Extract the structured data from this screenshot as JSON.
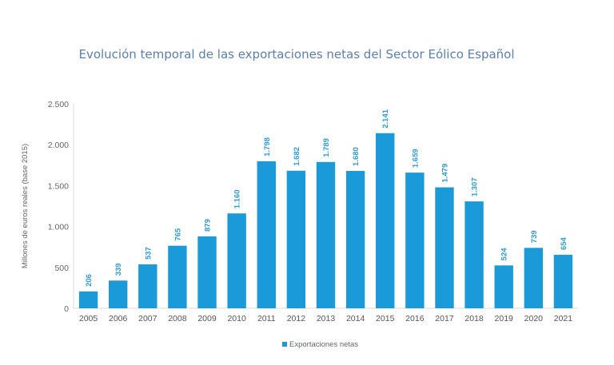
{
  "chart_data": {
    "type": "bar",
    "title": "Evolución temporal de las exportaciones netas del Sector Eólico Español",
    "xlabel": "",
    "ylabel": "Millones de euros reales (base 2015)",
    "ylim": [
      0,
      2500
    ],
    "yticks": [
      0,
      500,
      1000,
      1500,
      2000,
      2500
    ],
    "ytick_labels": [
      "0",
      "500",
      "1.000",
      "1.500",
      "2.000",
      "2.500"
    ],
    "grid": false,
    "legend_position": "bottom",
    "categories": [
      "2005",
      "2006",
      "2007",
      "2008",
      "2009",
      "2010",
      "2011",
      "2012",
      "2013",
      "2014",
      "2015",
      "2016",
      "2017",
      "2018",
      "2019",
      "2020",
      "2021"
    ],
    "series": [
      {
        "name": "Exportaciones netas",
        "color": "#1a9ad9",
        "values": [
          206,
          339,
          537,
          765,
          879,
          1160,
          1798,
          1682,
          1789,
          1680,
          2141,
          1659,
          1479,
          1307,
          524,
          739,
          654
        ],
        "value_labels": [
          "206",
          "339",
          "537",
          "765",
          "879",
          "1.160",
          "1.798",
          "1.682",
          "1.789",
          "1.680",
          "2.141",
          "1.659",
          "1.479",
          "1.307",
          "524",
          "739",
          "654"
        ]
      }
    ],
    "label_color": "#2d9ad6",
    "title_color": "#5b7fae"
  }
}
